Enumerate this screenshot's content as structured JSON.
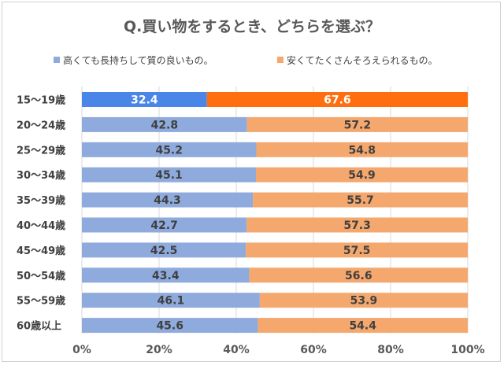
{
  "chart_data": {
    "type": "bar",
    "orientation": "horizontal",
    "stacked": true,
    "title": "Q.買い物をするとき、どちらを選ぶ？",
    "legend_position": "top",
    "categories": [
      "15～19歳",
      "20～24歳",
      "25～29歳",
      "30～34歳",
      "35～39歳",
      "40～44歳",
      "45～49歳",
      "50～54歳",
      "55～59歳",
      "60歳以上"
    ],
    "series": [
      {
        "name": "高くても長持ちして質の良いもの。",
        "color": "#8faadc",
        "highlight_color": "#4a86e8",
        "values": [
          32.4,
          42.8,
          45.2,
          45.1,
          44.3,
          42.7,
          42.5,
          43.4,
          46.1,
          45.6
        ]
      },
      {
        "name": "安くてたくさんそろえられるもの。",
        "color": "#f4a86e",
        "highlight_color": "#ff6f0f",
        "values": [
          67.6,
          57.2,
          54.8,
          54.9,
          55.7,
          57.3,
          57.5,
          56.6,
          53.9,
          54.4
        ]
      }
    ],
    "highlight_category": "15～19歳",
    "xlim": [
      0,
      100
    ],
    "x_ticks": [
      "0%",
      "20%",
      "40%",
      "60%",
      "80%",
      "100%"
    ],
    "grid": true
  }
}
